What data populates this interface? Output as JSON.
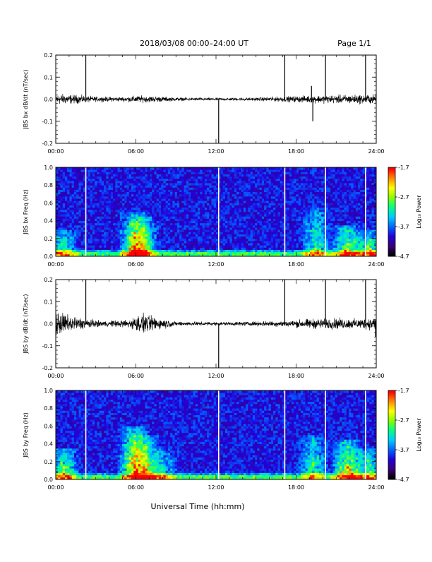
{
  "header": {
    "title": "2018/03/08   00:00–24:00 UT",
    "page": "Page 1/1"
  },
  "footer": {
    "xlabel": "Universal Time (hh:mm)"
  },
  "colors": {
    "trace": "#000000",
    "gap_lines_in_spectrogram": "#ffffff",
    "colormap": [
      "#000000",
      "#3a0078",
      "#2200dd",
      "#0066ff",
      "#00ccff",
      "#00ff88",
      "#88ff00",
      "#ffff00",
      "#ff8800",
      "#ff0000"
    ]
  },
  "chart_data": [
    {
      "type": "line",
      "id": "bx_dbdt",
      "ylabel": "JBS bx dB/dt (nT/sec)",
      "xlim_hours": [
        0,
        24
      ],
      "xticks": [
        "00:00",
        "06:00",
        "12:00",
        "18:00",
        "24:00"
      ],
      "ylim": [
        -0.2,
        0.2
      ],
      "yticks": [
        "-0.2",
        "-0.1",
        "0.0",
        "0.1",
        "0.2"
      ],
      "baseline": 0.0,
      "noise_envelope": [
        {
          "t": 0,
          "amp": 0.025
        },
        {
          "t": 1.5,
          "amp": 0.02
        },
        {
          "t": 3,
          "amp": 0.012
        },
        {
          "t": 5,
          "amp": 0.01
        },
        {
          "t": 6,
          "amp": 0.016
        },
        {
          "t": 7.5,
          "amp": 0.014
        },
        {
          "t": 9,
          "amp": 0.008
        },
        {
          "t": 12,
          "amp": 0.006
        },
        {
          "t": 15,
          "amp": 0.008
        },
        {
          "t": 18,
          "amp": 0.014
        },
        {
          "t": 20,
          "amp": 0.018
        },
        {
          "t": 22,
          "amp": 0.02
        },
        {
          "t": 24,
          "amp": 0.022
        }
      ],
      "spikes": [
        {
          "t": 2.25,
          "y": 0.21
        },
        {
          "t": 12.2,
          "y": -0.21
        },
        {
          "t": 17.15,
          "y": 0.21
        },
        {
          "t": 19.25,
          "y": -0.1
        },
        {
          "t": 19.15,
          "y": 0.06
        },
        {
          "t": 20.2,
          "y": 0.21
        },
        {
          "t": 23.2,
          "y": 0.21
        }
      ]
    },
    {
      "type": "heatmap",
      "id": "bx_freq",
      "ylabel": "JBS bx Freq (Hz)",
      "xlim_hours": [
        0,
        24
      ],
      "xticks": [
        "00:00",
        "06:00",
        "12:00",
        "18:00",
        "24:00"
      ],
      "ylim": [
        0,
        1.0
      ],
      "yticks": [
        "0.0",
        "0.2",
        "0.4",
        "0.6",
        "0.8",
        "1.0"
      ],
      "colorbar": {
        "label": "Log₁₀ Power",
        "range": [
          -4.7,
          -1.7
        ],
        "ticks": [
          "-1.7",
          "-2.7",
          "-3.7",
          "-4.7"
        ]
      },
      "gaps_hours": [
        2.25,
        12.2,
        17.15,
        20.2,
        23.2
      ],
      "activity": [
        {
          "t": 0.5,
          "f_top": 0.3,
          "level": 0.6
        },
        {
          "t": 5.9,
          "f_top": 0.5,
          "level": 0.75
        },
        {
          "t": 6.6,
          "f_top": 0.45,
          "level": 0.5
        },
        {
          "t": 19.5,
          "f_top": 0.55,
          "level": 0.5
        },
        {
          "t": 21.8,
          "f_top": 0.35,
          "level": 0.7
        },
        {
          "t": 23.5,
          "f_top": 0.3,
          "level": 0.6
        }
      ]
    },
    {
      "type": "line",
      "id": "by_dbdt",
      "ylabel": "JBS by dB/dt (nT/sec)",
      "xlim_hours": [
        0,
        24
      ],
      "xticks": [
        "00:00",
        "06:00",
        "12:00",
        "18:00",
        "24:00"
      ],
      "ylim": [
        -0.2,
        0.2
      ],
      "yticks": [
        "-0.2",
        "-0.1",
        "0.0",
        "0.1",
        "0.2"
      ],
      "baseline": 0.0,
      "noise_envelope": [
        {
          "t": 0,
          "amp": 0.055
        },
        {
          "t": 1,
          "amp": 0.04
        },
        {
          "t": 2,
          "amp": 0.025
        },
        {
          "t": 3.5,
          "amp": 0.012
        },
        {
          "t": 5.5,
          "amp": 0.02
        },
        {
          "t": 6.5,
          "amp": 0.045
        },
        {
          "t": 7.5,
          "amp": 0.03
        },
        {
          "t": 9,
          "amp": 0.01
        },
        {
          "t": 12,
          "amp": 0.008
        },
        {
          "t": 15,
          "amp": 0.01
        },
        {
          "t": 17.5,
          "amp": 0.015
        },
        {
          "t": 19,
          "amp": 0.022
        },
        {
          "t": 21,
          "amp": 0.025
        },
        {
          "t": 22.5,
          "amp": 0.022
        },
        {
          "t": 24,
          "amp": 0.03
        }
      ],
      "spikes": [
        {
          "t": 2.25,
          "y": 0.21
        },
        {
          "t": 12.2,
          "y": -0.21
        },
        {
          "t": 17.15,
          "y": 0.21
        },
        {
          "t": 20.2,
          "y": 0.21
        },
        {
          "t": 23.2,
          "y": 0.21
        },
        {
          "t": 23.95,
          "y": -0.06
        }
      ]
    },
    {
      "type": "heatmap",
      "id": "by_freq",
      "ylabel": "JBS by Freq (Hz)",
      "xlim_hours": [
        0,
        24
      ],
      "xticks": [
        "00:00",
        "06:00",
        "12:00",
        "18:00",
        "24:00"
      ],
      "ylim": [
        0,
        1.0
      ],
      "yticks": [
        "0.0",
        "0.2",
        "0.4",
        "0.6",
        "0.8",
        "1.0"
      ],
      "colorbar": {
        "label": "Log₁₀ Power",
        "range": [
          -4.7,
          -1.7
        ],
        "ticks": [
          "-1.7",
          "-2.7",
          "-3.7",
          "-4.7"
        ]
      },
      "gaps_hours": [
        2.25,
        12.2,
        17.15,
        20.2,
        23.2
      ],
      "activity": [
        {
          "t": 0.6,
          "f_top": 0.35,
          "level": 0.6
        },
        {
          "t": 5.9,
          "f_top": 0.6,
          "level": 0.85
        },
        {
          "t": 6.8,
          "f_top": 0.5,
          "level": 0.55
        },
        {
          "t": 8.0,
          "f_top": 0.35,
          "level": 0.4
        },
        {
          "t": 19.3,
          "f_top": 0.5,
          "level": 0.5
        },
        {
          "t": 21.8,
          "f_top": 0.45,
          "level": 0.8
        },
        {
          "t": 23.4,
          "f_top": 0.35,
          "level": 0.6
        }
      ]
    }
  ]
}
